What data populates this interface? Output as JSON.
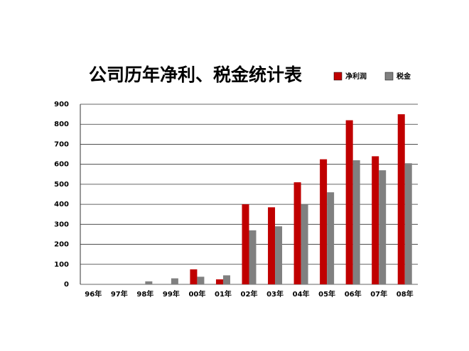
{
  "chart_data": {
    "type": "bar",
    "title": "公司历年净利、税金统计表",
    "categories": [
      "96年",
      "97年",
      "98年",
      "99年",
      "00年",
      "01年",
      "02年",
      "03年",
      "04年",
      "05年",
      "06年",
      "07年",
      "08年"
    ],
    "series": [
      {
        "name": "净利润",
        "color": "#c00000",
        "values": [
          0,
          0,
          0,
          0,
          75,
          25,
          400,
          385,
          510,
          625,
          820,
          640,
          850
        ]
      },
      {
        "name": "税金",
        "color": "#808080",
        "values": [
          0,
          0,
          15,
          30,
          38,
          45,
          270,
          290,
          400,
          460,
          620,
          570,
          605
        ]
      }
    ],
    "ylim": [
      0,
      900
    ],
    "yticks": [
      0,
      100,
      200,
      300,
      400,
      500,
      600,
      700,
      800,
      900
    ],
    "grid": true,
    "legend": "top-right"
  }
}
